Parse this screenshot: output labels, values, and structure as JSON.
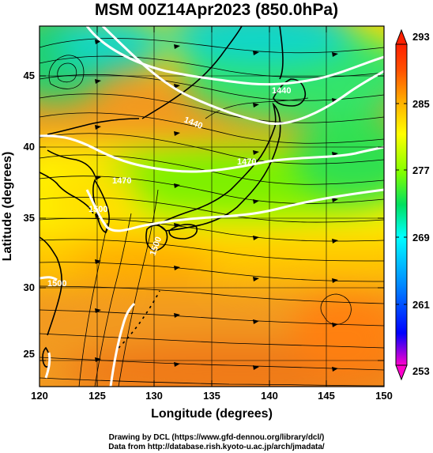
{
  "title": "MSM 00Z14Apr2023 (850.0hPa)",
  "map": {
    "x_axis": {
      "label": "Longitude (degrees)",
      "ticks": [
        "120",
        "125",
        "130",
        "135",
        "140",
        "145",
        "150"
      ],
      "range": [
        120,
        150
      ]
    },
    "y_axis": {
      "label": "Latitude  (degrees)",
      "ticks": [
        "25",
        "30",
        "35",
        "40",
        "45"
      ],
      "range": [
        22.4,
        47.6
      ]
    },
    "colorbar": {
      "ticks": [
        "293",
        "285",
        "277",
        "269",
        "261",
        "253"
      ],
      "range": [
        253,
        293
      ],
      "colors": [
        "#ff00cc",
        "#0000ff",
        "#0088ff",
        "#00ffff",
        "#00e060",
        "#80ff00",
        "#ffff00",
        "#ffb000",
        "#ff5000",
        "#ff2000"
      ]
    },
    "contours": [
      {
        "label": "1440"
      },
      {
        "label": "1440"
      },
      {
        "label": "1470"
      },
      {
        "label": "1470"
      },
      {
        "label": "1500"
      },
      {
        "label": "1500"
      },
      {
        "label": "1500"
      }
    ]
  },
  "credits": {
    "line1": "Drawing by DCL (https://www.gfd-dennou.org/library/dcl/)",
    "line2": "Data from http://database.rish.kyoto-u.ac.jp/arch/jmadata/"
  }
}
